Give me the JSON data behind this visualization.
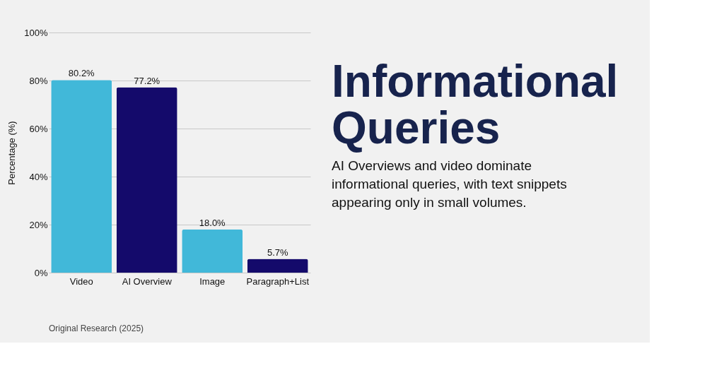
{
  "chart_data": {
    "type": "bar",
    "title": "Informational Queries",
    "subtitle": "AI Overviews and video dominate informational queries, with text snippets appearing only in small volumes.",
    "ylabel": "Percentage (%)",
    "categories": [
      "Video",
      "AI Overview",
      "Image",
      "Paragraph+List"
    ],
    "values": [
      80.2,
      77.2,
      18.0,
      5.7
    ],
    "colors": [
      "#41b8d9",
      "#140a6b",
      "#41b8d9",
      "#140a6b"
    ],
    "value_labels": [
      "80.2%",
      "77.2%",
      "18.0%",
      "5.7%"
    ],
    "ylim": [
      0,
      100
    ],
    "yticks": [
      {
        "value": 0,
        "label": "0%"
      },
      {
        "value": 20,
        "label": "20%"
      },
      {
        "value": 40,
        "label": "40%"
      },
      {
        "value": 60,
        "label": "60%"
      },
      {
        "value": 80,
        "label": "80%"
      },
      {
        "value": 100,
        "label": "100%"
      }
    ],
    "grid": "y",
    "annotations": [
      "Original Research (2025)"
    ]
  }
}
